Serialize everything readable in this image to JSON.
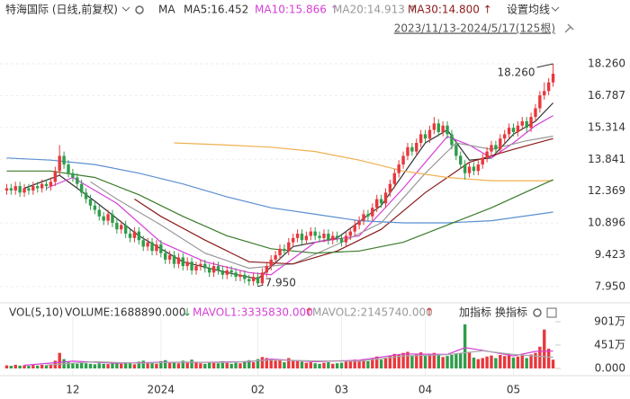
{
  "header": {
    "title": "特海国际 (日线,前复权)",
    "ma_button": "MA",
    "ma_labels": [
      "MA5:16.452",
      "MA10:15.866 ↑",
      "MA20:14.913 ↑",
      "MA30:14.800 ↑"
    ],
    "ma_colors": [
      "#333333",
      "#d63fd6",
      "#999999",
      "#8b1a1a"
    ],
    "settings": "设置均线",
    "range": "2023/11/13-2024/5/17(125根)",
    "vol_name": "VOL(5,10)",
    "volume": "VOLUME:1688890.000",
    "volume_arrow": "↓",
    "mavol1": "MAVOL1:3335830.000",
    "mavol1_arrow": "↑",
    "mavol2": "MAVOL2:2145740.000",
    "mavol2_arrow": "↑",
    "add_indicator": "加指标",
    "change_indicator": "换指标"
  },
  "chart_data": [
    {
      "type": "candlestick",
      "up_color": "#e8383d",
      "down_color": "#2e9d4a",
      "ylim": [
        7.49,
        19.34
      ],
      "xlim": [
        -0.5,
        124.5
      ],
      "grid": true,
      "yticks": [
        {
          "value": 18.26,
          "label": "18.260"
        },
        {
          "value": 16.787,
          "label": "16.787"
        },
        {
          "value": 15.314,
          "label": "15.314"
        },
        {
          "value": 13.841,
          "label": "13.841"
        },
        {
          "value": 12.369,
          "label": "12.369"
        },
        {
          "value": 10.896,
          "label": "10.896"
        },
        {
          "value": 9.423,
          "label": "9.423"
        },
        {
          "value": 7.95,
          "label": "7.950"
        }
      ],
      "open": [
        12.4,
        12.5,
        12.4,
        12.6,
        12.3,
        12.5,
        12.4,
        12.6,
        12.5,
        12.7,
        12.6,
        12.8,
        13.3,
        14.0,
        13.6,
        13.2,
        13.0,
        12.7,
        12.3,
        12.0,
        11.7,
        11.5,
        11.2,
        11.0,
        11.3,
        10.9,
        10.6,
        10.8,
        10.4,
        10.2,
        10.5,
        10.1,
        9.8,
        10.0,
        9.6,
        9.9,
        9.5,
        9.2,
        9.4,
        9.0,
        9.3,
        8.9,
        9.1,
        8.7,
        8.9,
        9.0,
        8.8,
        8.6,
        8.9,
        8.7,
        8.5,
        8.7,
        8.6,
        8.4,
        8.5,
        8.3,
        8.2,
        8.4,
        8.1,
        8.6,
        8.9,
        9.2,
        9.4,
        9.7,
        9.6,
        10.0,
        10.2,
        10.4,
        10.1,
        10.3,
        10.5,
        10.3,
        10.2,
        10.4,
        10.1,
        10.3,
        10.2,
        10.0,
        10.3,
        10.5,
        10.8,
        11.0,
        11.3,
        11.2,
        11.6,
        12.0,
        11.8,
        12.3,
        12.7,
        13.2,
        13.6,
        14.0,
        14.4,
        14.2,
        14.6,
        15.0,
        14.8,
        15.2,
        15.5,
        15.1,
        15.4,
        15.0,
        14.5,
        14.0,
        13.6,
        13.2,
        13.5,
        13.3,
        13.6,
        13.9,
        14.2,
        14.5,
        14.3,
        14.8,
        15.0,
        15.3,
        15.1,
        15.4,
        15.6,
        15.3,
        15.8,
        16.2,
        16.8,
        17.0,
        17.4
      ],
      "high": [
        12.7,
        12.7,
        12.8,
        12.8,
        12.7,
        12.7,
        12.8,
        12.8,
        12.9,
        12.9,
        13.0,
        13.5,
        14.5,
        14.2,
        13.8,
        13.4,
        13.2,
        12.9,
        12.5,
        12.2,
        11.9,
        11.7,
        11.4,
        11.5,
        11.5,
        11.1,
        11.0,
        11.0,
        10.6,
        10.7,
        10.7,
        10.3,
        10.2,
        10.2,
        10.1,
        10.1,
        9.7,
        9.6,
        9.6,
        9.5,
        9.5,
        9.3,
        9.3,
        9.1,
        9.2,
        9.2,
        9.0,
        9.1,
        9.1,
        8.9,
        8.9,
        8.9,
        8.8,
        8.7,
        8.7,
        8.5,
        8.6,
        8.6,
        8.8,
        9.1,
        9.4,
        9.6,
        9.9,
        9.9,
        10.2,
        10.4,
        10.6,
        10.6,
        10.5,
        10.7,
        10.7,
        10.5,
        10.6,
        10.6,
        10.5,
        10.5,
        10.4,
        10.5,
        10.7,
        11.0,
        11.2,
        11.5,
        11.5,
        11.8,
        12.2,
        12.2,
        12.5,
        12.9,
        13.4,
        13.8,
        14.2,
        14.6,
        14.6,
        14.8,
        15.2,
        15.2,
        15.4,
        15.8,
        15.7,
        15.6,
        15.6,
        15.2,
        14.7,
        14.2,
        13.8,
        13.7,
        13.7,
        13.8,
        14.1,
        14.4,
        14.7,
        14.7,
        15.0,
        15.2,
        15.5,
        15.5,
        15.6,
        15.8,
        15.8,
        16.0,
        16.4,
        17.0,
        17.4,
        17.6,
        18.26
      ],
      "low": [
        12.2,
        12.2,
        12.2,
        12.1,
        12.1,
        12.2,
        12.2,
        12.3,
        12.3,
        12.4,
        12.4,
        12.6,
        13.1,
        13.4,
        13.0,
        12.8,
        12.5,
        12.1,
        11.8,
        11.5,
        11.3,
        11.0,
        10.8,
        10.8,
        10.7,
        10.4,
        10.4,
        10.2,
        10.0,
        10.0,
        9.9,
        9.6,
        9.6,
        9.4,
        9.4,
        9.3,
        9.0,
        9.0,
        8.8,
        8.8,
        8.7,
        8.7,
        8.5,
        8.5,
        8.7,
        8.6,
        8.4,
        8.4,
        8.5,
        8.3,
        8.3,
        8.4,
        8.2,
        8.2,
        8.1,
        8.0,
        8.0,
        7.95,
        8.0,
        8.4,
        8.7,
        9.0,
        9.2,
        9.4,
        9.4,
        9.8,
        10.0,
        9.9,
        9.9,
        10.1,
        10.1,
        10.0,
        10.0,
        9.9,
        9.9,
        10.0,
        9.8,
        9.8,
        10.1,
        10.3,
        10.6,
        10.8,
        11.0,
        11.0,
        11.4,
        11.6,
        11.6,
        12.1,
        12.5,
        13.0,
        13.4,
        13.8,
        14.0,
        14.0,
        14.4,
        14.6,
        14.6,
        15.0,
        14.9,
        14.9,
        14.8,
        14.3,
        13.8,
        13.4,
        12.9,
        13.0,
        13.1,
        13.1,
        13.4,
        13.7,
        14.0,
        14.1,
        14.1,
        14.6,
        14.8,
        14.9,
        14.9,
        15.2,
        15.1,
        15.1,
        15.6,
        16.0,
        16.6,
        16.8,
        17.2
      ],
      "close": [
        12.5,
        12.4,
        12.6,
        12.3,
        12.5,
        12.4,
        12.6,
        12.5,
        12.7,
        12.6,
        12.8,
        13.3,
        14.0,
        13.6,
        13.2,
        13.0,
        12.7,
        12.3,
        12.0,
        11.7,
        11.5,
        11.2,
        11.0,
        11.3,
        10.9,
        10.6,
        10.8,
        10.4,
        10.2,
        10.5,
        10.1,
        9.8,
        10.0,
        9.6,
        9.9,
        9.5,
        9.2,
        9.4,
        9.0,
        9.3,
        8.9,
        9.1,
        8.7,
        8.9,
        9.0,
        8.8,
        8.6,
        8.9,
        8.7,
        8.5,
        8.7,
        8.6,
        8.4,
        8.5,
        8.3,
        8.2,
        8.4,
        8.1,
        8.6,
        8.9,
        9.2,
        9.4,
        9.7,
        9.6,
        10.0,
        10.2,
        10.4,
        10.1,
        10.3,
        10.5,
        10.3,
        10.2,
        10.4,
        10.1,
        10.3,
        10.2,
        10.0,
        10.3,
        10.5,
        10.8,
        11.0,
        11.3,
        11.2,
        11.6,
        12.0,
        11.8,
        12.3,
        12.7,
        13.2,
        13.6,
        14.0,
        14.4,
        14.2,
        14.6,
        15.0,
        14.8,
        15.2,
        15.5,
        15.1,
        15.4,
        15.0,
        14.5,
        14.0,
        13.6,
        13.2,
        13.5,
        13.3,
        13.6,
        13.9,
        14.2,
        14.5,
        14.3,
        14.8,
        15.0,
        15.3,
        15.1,
        15.4,
        15.6,
        15.3,
        15.8,
        16.2,
        16.8,
        17.0,
        17.4,
        17.8
      ],
      "lines": [
        {
          "color": "#333333",
          "x": [
            4,
            12,
            20,
            30,
            40,
            50,
            57,
            65,
            75,
            85,
            95,
            100,
            105,
            110,
            115,
            120,
            124
          ],
          "values": [
            12.5,
            13.1,
            11.9,
            10.3,
            9.1,
            8.6,
            8.3,
            9.8,
            10.2,
            11.7,
            14.6,
            15.2,
            13.8,
            13.9,
            15.0,
            15.6,
            16.452
          ]
        },
        {
          "color": "#d63fd6",
          "x": [
            9,
            15,
            25,
            35,
            45,
            55,
            60,
            70,
            80,
            90,
            100,
            105,
            110,
            115,
            120,
            124
          ],
          "values": [
            12.5,
            13.0,
            11.8,
            10.0,
            9.1,
            8.6,
            8.5,
            10.0,
            10.3,
            12.5,
            14.9,
            14.5,
            13.9,
            14.6,
            15.4,
            15.866
          ]
        },
        {
          "color": "#999999",
          "x": [
            19,
            25,
            35,
            45,
            55,
            65,
            75,
            85,
            95,
            102,
            110,
            118,
            124
          ],
          "values": [
            12.8,
            12.0,
            10.8,
            9.5,
            8.8,
            9.0,
            9.9,
            10.9,
            13.2,
            14.6,
            14.3,
            14.7,
            14.913
          ]
        },
        {
          "color": "#8b1a1a",
          "x": [
            29,
            35,
            45,
            55,
            65,
            75,
            85,
            95,
            105,
            115,
            124
          ],
          "values": [
            12.0,
            11.2,
            10.1,
            9.1,
            9.0,
            9.6,
            10.6,
            12.3,
            13.7,
            14.3,
            14.8
          ]
        },
        {
          "color": "#f0b050",
          "x": [
            38,
            50,
            60,
            70,
            80,
            90,
            100,
            110,
            124
          ],
          "values": [
            14.6,
            14.5,
            14.4,
            14.2,
            13.8,
            13.3,
            13.0,
            12.85,
            12.85
          ]
        },
        {
          "color": "#5b8fd0",
          "x": [
            0,
            10,
            20,
            30,
            40,
            50,
            60,
            70,
            80,
            90,
            100,
            110,
            124
          ],
          "values": [
            13.9,
            13.8,
            13.6,
            13.2,
            12.7,
            12.1,
            11.6,
            11.3,
            11.0,
            10.9,
            10.9,
            11.0,
            11.4
          ]
        },
        {
          "color": "#3a7a2a",
          "x": [
            0,
            10,
            20,
            30,
            40,
            50,
            60,
            70,
            80,
            90,
            100,
            110,
            124
          ],
          "values": [
            13.3,
            13.3,
            13.0,
            12.2,
            11.2,
            10.3,
            9.7,
            9.5,
            9.6,
            10.0,
            10.8,
            11.6,
            12.9
          ]
        }
      ],
      "annotations": [
        {
          "text": "18.260",
          "x": 124,
          "y": 18.26
        },
        {
          "text": "7.950",
          "x": 57,
          "y": 7.95
        }
      ]
    },
    {
      "type": "bar",
      "ylim": [
        0,
        1005
      ],
      "xlim": [
        -0.5,
        124.5
      ],
      "yticks": [
        {
          "value": 901,
          "label": "901万"
        },
        {
          "value": 451,
          "label": "451万"
        },
        {
          "value": 0,
          "label": "0.000"
        }
      ],
      "xticks": [
        {
          "value": 15,
          "label": "12"
        },
        {
          "value": 35,
          "label": "2024"
        },
        {
          "value": 57,
          "label": "02"
        },
        {
          "value": 76,
          "label": "03"
        },
        {
          "value": 95,
          "label": "04"
        },
        {
          "value": 115,
          "label": "05"
        }
      ],
      "values": [
        60,
        50,
        70,
        55,
        60,
        50,
        65,
        55,
        70,
        60,
        80,
        150,
        300,
        180,
        120,
        100,
        90,
        110,
        100,
        90,
        80,
        100,
        90,
        85,
        110,
        120,
        90,
        100,
        110,
        80,
        130,
        150,
        100,
        120,
        90,
        140,
        160,
        110,
        130,
        100,
        150,
        110,
        170,
        120,
        100,
        90,
        130,
        110,
        100,
        140,
        120,
        90,
        110,
        100,
        130,
        160,
        120,
        180,
        220,
        200,
        190,
        150,
        170,
        120,
        200,
        160,
        150,
        130,
        110,
        120,
        100,
        90,
        110,
        120,
        90,
        100,
        110,
        130,
        150,
        170,
        160,
        180,
        140,
        190,
        230,
        170,
        210,
        240,
        280,
        260,
        300,
        320,
        250,
        280,
        310,
        240,
        270,
        300,
        260,
        220,
        240,
        260,
        280,
        300,
        850,
        320,
        210,
        180,
        200,
        230,
        250,
        200,
        260,
        240,
        280,
        210,
        230,
        250,
        200,
        270,
        300,
        420,
        750,
        380,
        168.889
      ],
      "lines": [
        {
          "color": "#d63fd6",
          "x": [
            4,
            15,
            25,
            35,
            45,
            55,
            60,
            70,
            80,
            90,
            100,
            104,
            108,
            115,
            120,
            124
          ],
          "values": [
            60,
            140,
            100,
            120,
            120,
            130,
            180,
            130,
            160,
            280,
            270,
            400,
            350,
            240,
            330,
            333.583
          ]
        },
        {
          "color": "#aaaaaa",
          "x": [
            9,
            20,
            30,
            40,
            50,
            60,
            70,
            80,
            90,
            100,
            108,
            115,
            124
          ],
          "values": [
            65,
            130,
            100,
            125,
            115,
            165,
            145,
            140,
            240,
            265,
            340,
            270,
            214.574
          ]
        }
      ]
    }
  ]
}
